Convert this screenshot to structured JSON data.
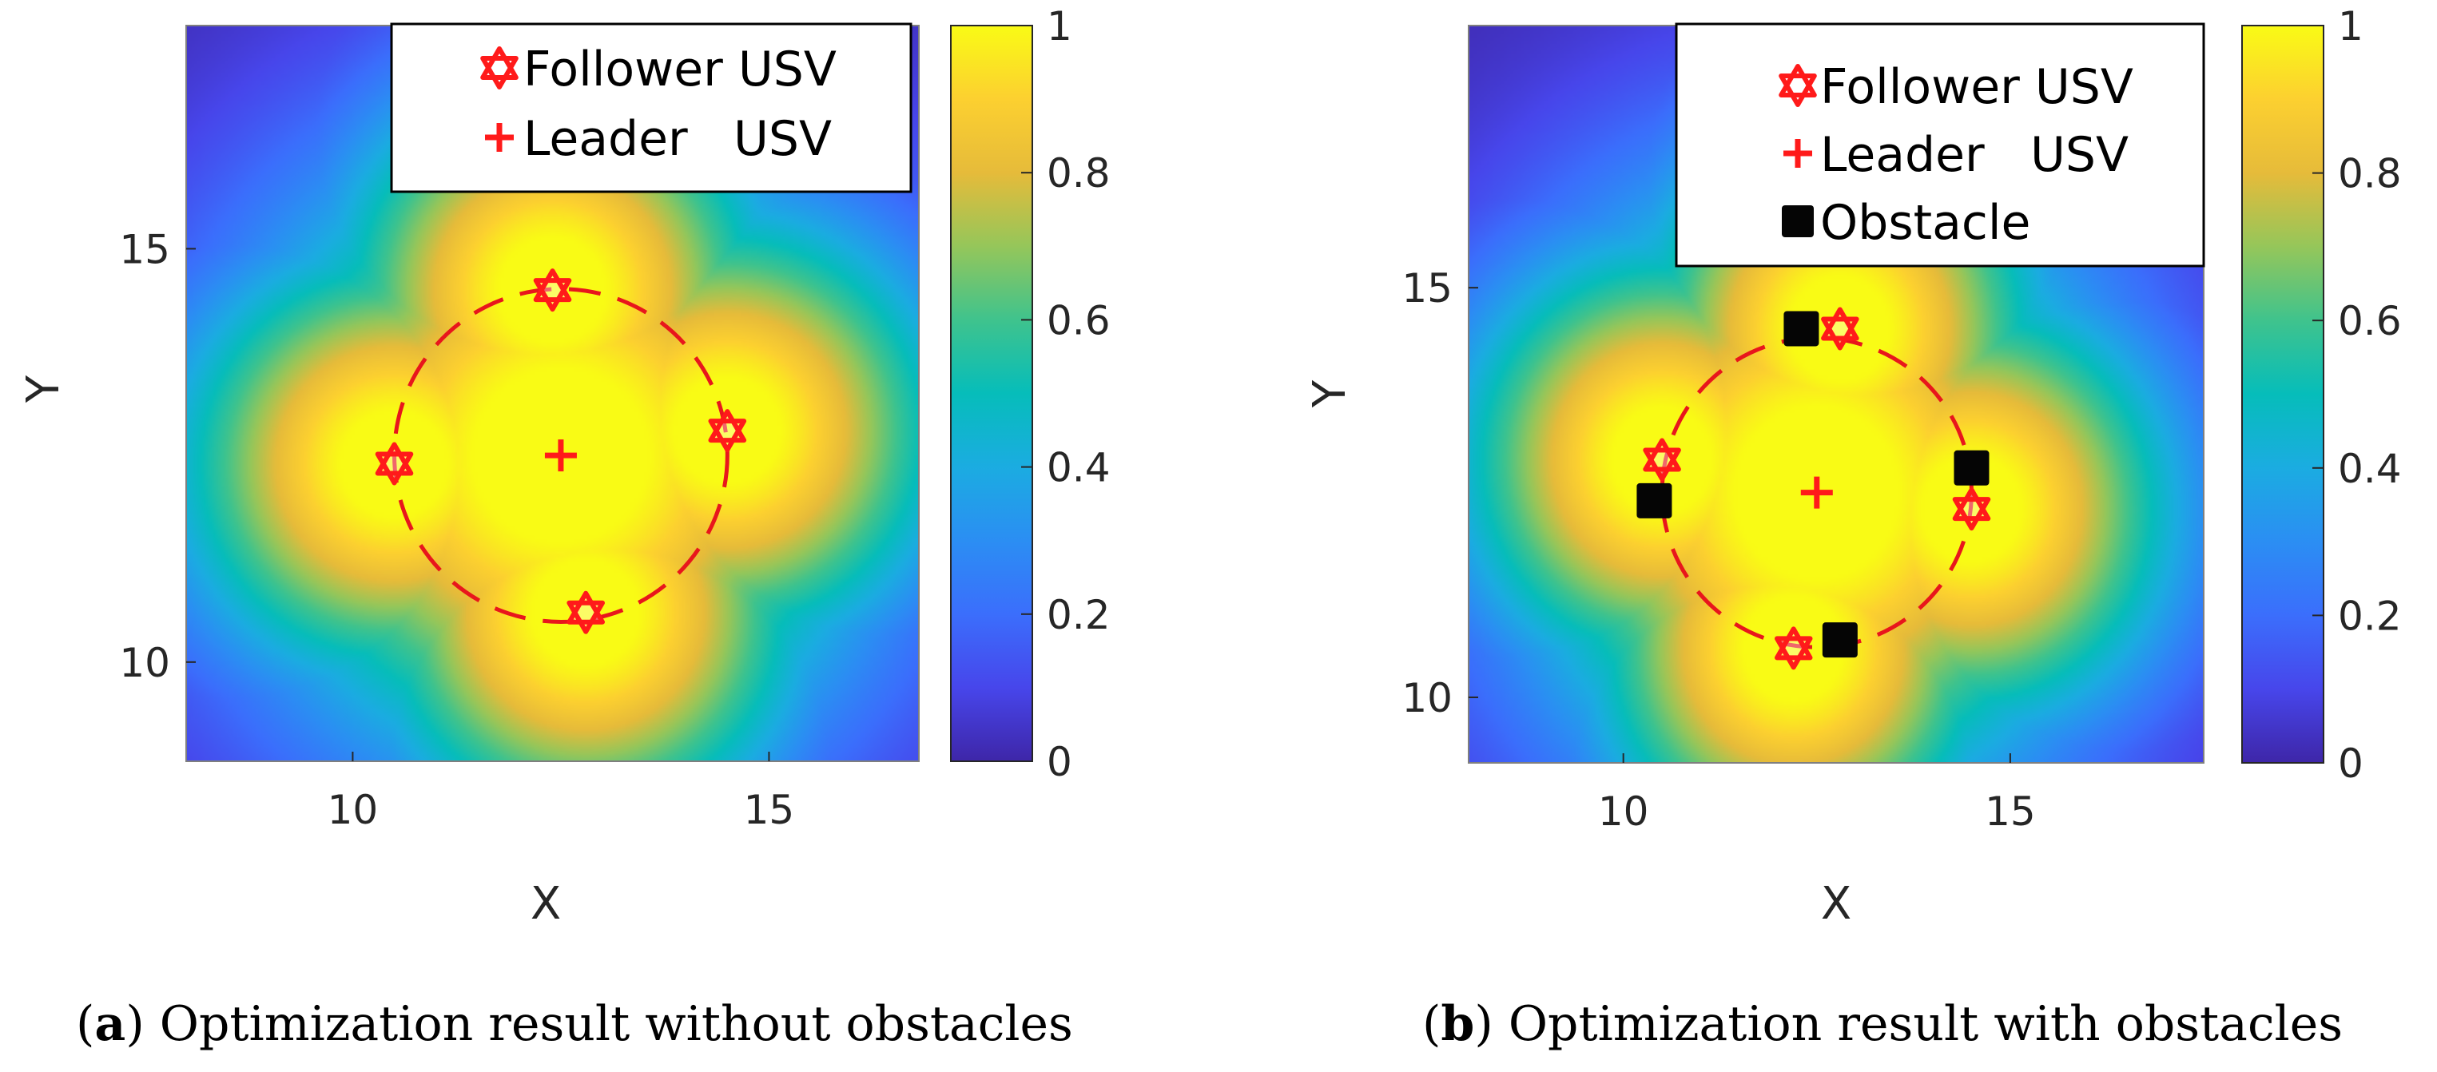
{
  "chart_data": [
    {
      "id": "a",
      "type": "heatmap",
      "caption_letter": "a",
      "caption_text": "Optimization result without obstacles",
      "xlabel": "X",
      "ylabel": "Y",
      "xlim": [
        8,
        16.8
      ],
      "ylim": [
        8.8,
        17.7
      ],
      "xticks": [
        {
          "value": 10,
          "label": "10"
        },
        {
          "value": 15,
          "label": "15"
        }
      ],
      "yticks": [
        {
          "value": 10,
          "label": "10"
        },
        {
          "value": 15,
          "label": "15"
        }
      ],
      "colorbar": {
        "range": [
          0,
          1
        ],
        "ticks": [
          {
            "value": 0,
            "label": "0"
          },
          {
            "value": 0.2,
            "label": "0.2"
          },
          {
            "value": 0.4,
            "label": "0.4"
          },
          {
            "value": 0.6,
            "label": "0.6"
          },
          {
            "value": 0.8,
            "label": "0.8"
          },
          {
            "value": 1,
            "label": "1"
          }
        ]
      },
      "legend": [
        {
          "marker": "hexagram",
          "label": "Follower USV"
        },
        {
          "marker": "plus",
          "label": "Leader   USV"
        }
      ],
      "legend_location": "top-right",
      "formation_circle": {
        "center": [
          12.5,
          12.5
        ],
        "radius": 2
      },
      "leader": [
        [
          12.5,
          12.5
        ]
      ],
      "followers": [
        [
          12.4,
          14.5
        ],
        [
          14.5,
          12.8
        ],
        [
          12.8,
          10.6
        ],
        [
          10.5,
          12.4
        ]
      ],
      "obstacles": []
    },
    {
      "id": "b",
      "type": "heatmap",
      "caption_letter": "b",
      "caption_text": "Optimization result with obstacles",
      "xlabel": "X",
      "ylabel": "Y",
      "xlim": [
        8,
        17.5
      ],
      "ylim": [
        9.2,
        18.2
      ],
      "xticks": [
        {
          "value": 10,
          "label": "10"
        },
        {
          "value": 15,
          "label": "15"
        }
      ],
      "yticks": [
        {
          "value": 10,
          "label": "10"
        },
        {
          "value": 15,
          "label": "15"
        }
      ],
      "colorbar": {
        "range": [
          0,
          1
        ],
        "ticks": [
          {
            "value": 0,
            "label": "0"
          },
          {
            "value": 0.2,
            "label": "0.2"
          },
          {
            "value": 0.4,
            "label": "0.4"
          },
          {
            "value": 0.6,
            "label": "0.6"
          },
          {
            "value": 0.8,
            "label": "0.8"
          },
          {
            "value": 1,
            "label": "1"
          }
        ]
      },
      "legend": [
        {
          "marker": "hexagram",
          "label": "Follower USV"
        },
        {
          "marker": "plus",
          "label": "Leader   USV"
        },
        {
          "marker": "square",
          "label": "Obstacle"
        }
      ],
      "legend_location": "top-right",
      "formation_circle": {
        "center": [
          12.5,
          12.5
        ],
        "radius": 2
      },
      "leader": [
        [
          12.5,
          12.5
        ]
      ],
      "followers": [
        [
          12.8,
          14.5
        ],
        [
          14.5,
          12.3
        ],
        [
          12.2,
          10.6
        ],
        [
          10.5,
          12.9
        ]
      ],
      "obstacles": [
        [
          12.3,
          14.5
        ],
        [
          14.5,
          12.8
        ],
        [
          12.8,
          10.7
        ],
        [
          10.4,
          12.4
        ]
      ]
    }
  ]
}
